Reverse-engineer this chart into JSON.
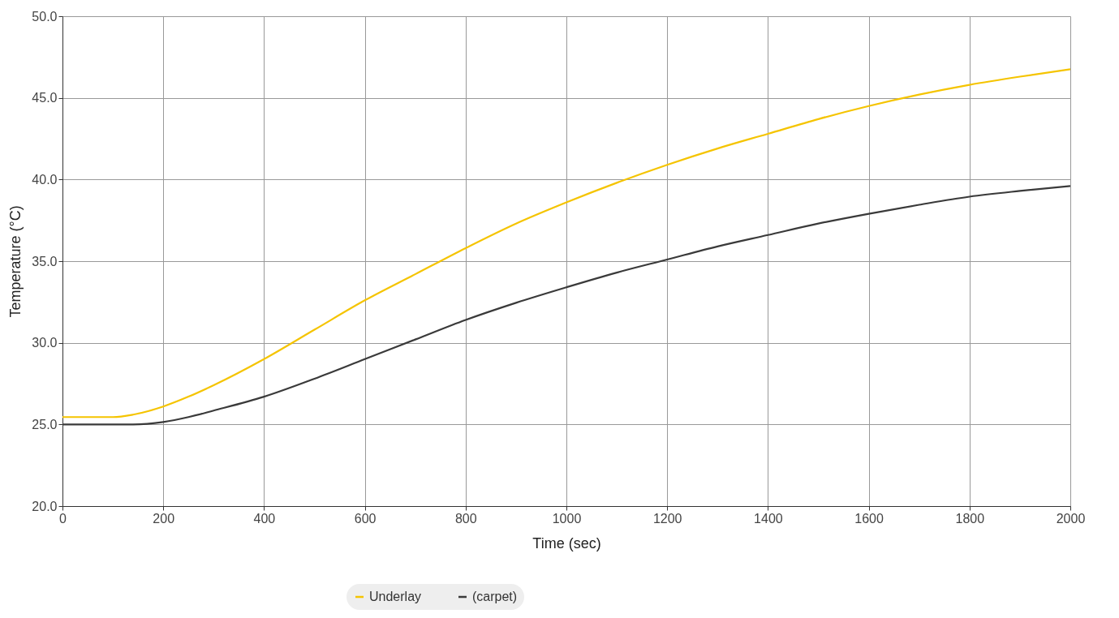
{
  "chart_data": {
    "type": "line",
    "xlabel": "Time (sec)",
    "ylabel": "Temperature (°C)",
    "x": [
      0,
      100,
      140,
      200,
      250,
      300,
      400,
      500,
      600,
      700,
      800,
      900,
      1000,
      1100,
      1200,
      1300,
      1400,
      1500,
      1600,
      1700,
      1800,
      1900,
      2000
    ],
    "series": [
      {
        "name": "Underlay",
        "color": "#f5c400",
        "values": [
          25.45,
          25.45,
          25.6,
          26.1,
          26.7,
          27.4,
          29.0,
          30.8,
          32.6,
          34.2,
          35.8,
          37.3,
          38.6,
          39.8,
          40.9,
          41.9,
          42.8,
          43.7,
          44.5,
          45.2,
          45.8,
          46.3,
          46.75
        ]
      },
      {
        "name": "(carpet)",
        "color": "#3a3a3a",
        "values": [
          25.0,
          25.0,
          25.0,
          25.15,
          25.45,
          25.85,
          26.7,
          27.8,
          29.0,
          30.2,
          31.4,
          32.45,
          33.4,
          34.3,
          35.1,
          35.9,
          36.6,
          37.3,
          37.9,
          38.45,
          38.95,
          39.3,
          39.6
        ]
      }
    ],
    "xlim": [
      0,
      2000
    ],
    "xticks": [
      0,
      200,
      400,
      600,
      800,
      1000,
      1200,
      1400,
      1600,
      1800,
      2000
    ],
    "ylim": [
      20,
      50
    ],
    "yticks": [
      {
        "value": 20,
        "label": "20.0"
      },
      {
        "value": 25,
        "label": "25.0"
      },
      {
        "value": 30,
        "label": "30.0"
      },
      {
        "value": 35,
        "label": "35.0"
      },
      {
        "value": 40,
        "label": "40.0"
      },
      {
        "value": 45,
        "label": "45.0"
      },
      {
        "value": 50,
        "label": "50.0"
      }
    ],
    "grid": true,
    "legend": "bottom",
    "marker": "none",
    "line_style": "solid"
  }
}
